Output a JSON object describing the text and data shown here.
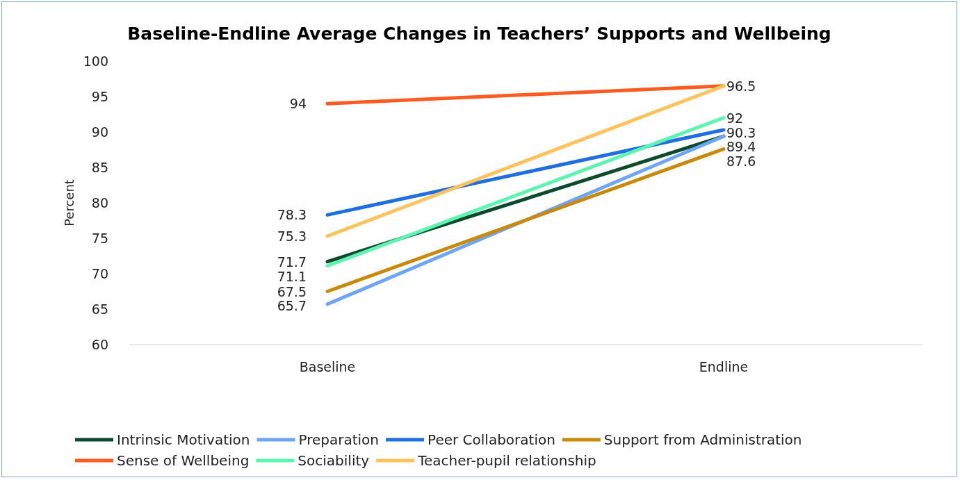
{
  "chart_data": {
    "type": "line",
    "title": "Baseline-Endline Average Changes in Teachers’ Supports and Wellbeing",
    "ylabel": "Percent",
    "categories": [
      "Baseline",
      "Endline"
    ],
    "series": [
      {
        "name": "Intrinsic Motivation",
        "color": "#0b4a2c",
        "values": [
          71.7,
          89.4
        ],
        "value_labels": [
          "71.7",
          "89.4"
        ]
      },
      {
        "name": "Preparation",
        "color": "#6ea6f5",
        "values": [
          65.7,
          89.4
        ],
        "value_labels": [
          "65.7",
          null
        ]
      },
      {
        "name": "Peer Collaboration",
        "color": "#1f6fe0",
        "values": [
          78.3,
          90.3
        ],
        "value_labels": [
          "78.3",
          "90.3"
        ]
      },
      {
        "name": "Support from Administration",
        "color": "#c98a0a",
        "values": [
          67.5,
          87.6
        ],
        "value_labels": [
          "67.5",
          "87.6"
        ]
      },
      {
        "name": "Sense of Wellbeing",
        "color": "#ff5a1f",
        "values": [
          94,
          96.5
        ],
        "value_labels": [
          "94",
          null
        ]
      },
      {
        "name": "Sociability",
        "color": "#5cf5b0",
        "values": [
          71.1,
          92
        ],
        "value_labels": [
          "71.1",
          "92"
        ]
      },
      {
        "name": "Teacher-pupil relationship",
        "color": "#ffc35c",
        "values": [
          75.3,
          96.5
        ],
        "value_labels": [
          "75.3",
          "96.5"
        ]
      }
    ],
    "ylim": [
      60,
      100
    ],
    "yticks": [
      60,
      65,
      70,
      75,
      80,
      85,
      90,
      95,
      100
    ],
    "grid": false,
    "legend": "bottom",
    "marker": "none",
    "line_style": "solid"
  }
}
